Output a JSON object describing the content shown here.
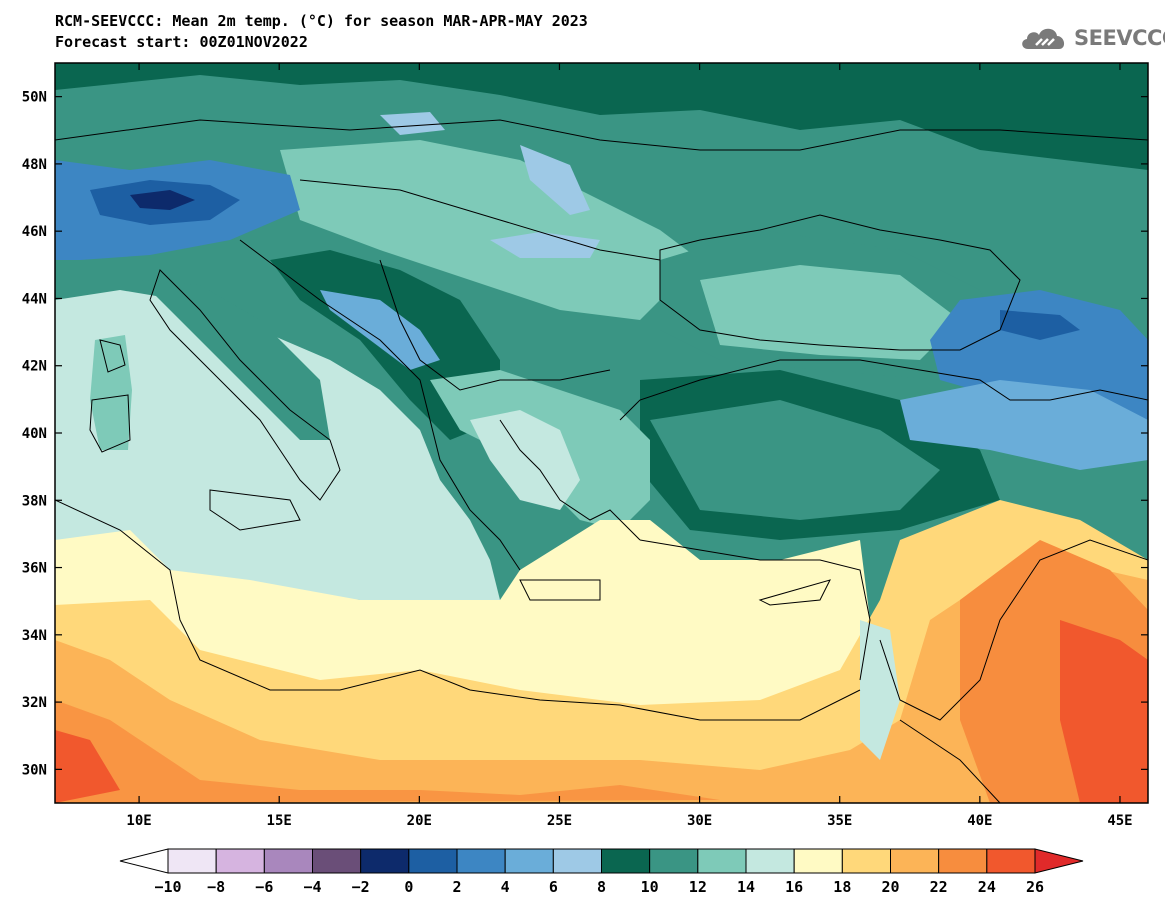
{
  "header": {
    "title_line1": "RCM-SEEVCCC: Mean 2m temp. (°C) for season MAR-APR-MAY 2023",
    "title_line2": "Forecast start: 00Z01NOV2022"
  },
  "logo": {
    "text": "SEEVCCC",
    "icon": "cloud-logo-icon",
    "color": "#7a7a7a"
  },
  "map": {
    "lon_range": [
      7,
      46
    ],
    "lat_range": [
      29,
      51
    ],
    "lon_ticks": [
      10,
      15,
      20,
      25,
      30,
      35,
      40,
      45
    ],
    "lon_tick_labels": [
      "10E",
      "15E",
      "20E",
      "25E",
      "30E",
      "35E",
      "40E",
      "45E"
    ],
    "lat_ticks": [
      30,
      32,
      34,
      36,
      38,
      40,
      42,
      44,
      46,
      48,
      50
    ],
    "lat_tick_labels": [
      "30N",
      "32N",
      "34N",
      "36N",
      "38N",
      "40N",
      "42N",
      "44N",
      "46N",
      "48N",
      "50N"
    ]
  },
  "colorbar": {
    "labels": [
      "−10",
      "−8",
      "−6",
      "−4",
      "−2",
      "0",
      "2",
      "4",
      "6",
      "8",
      "10",
      "12",
      "14",
      "16",
      "18",
      "20",
      "22",
      "24",
      "26"
    ],
    "colors": [
      "#efe6f5",
      "#d6b4e0",
      "#a987bd",
      "#6a4e78",
      "#0d2a6b",
      "#1d5fa3",
      "#3d86c3",
      "#6aadd9",
      "#9ec9e6",
      "#0a6650",
      "#3a9584",
      "#7ecab8",
      "#c4e8e0",
      "#fffac4",
      "#ffd87a",
      "#fcb457",
      "#f78d3e",
      "#f1582d"
    ],
    "below_color": "#ffffff",
    "above_color": "#e02a2a"
  }
}
